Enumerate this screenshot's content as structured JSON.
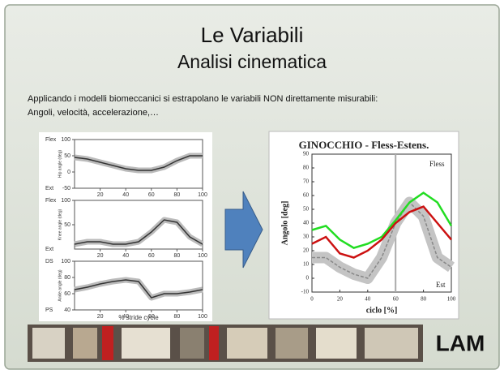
{
  "slide": {
    "title": "Le Variabili",
    "subtitle": "Analisi cinematica",
    "body": [
      "Applicando i modelli biomeccanici si estrapolano le variabili NON direttamente misurabili:",
      "Angoli, velocità, accelerazione,…"
    ],
    "logo": "LAM"
  },
  "left_figure": {
    "xlabel": "% stride cycle",
    "xlim": [
      0,
      100
    ],
    "xticks": [
      20,
      40,
      60,
      80,
      100
    ],
    "x": [
      0,
      10,
      20,
      30,
      40,
      50,
      60,
      70,
      80,
      90,
      100
    ],
    "panels": [
      {
        "ylabel": "Hip angle (deg)",
        "top_label": "Flex",
        "bottom_label": "Ext",
        "ylim": [
          -50,
          100
        ],
        "yticks": [
          -50,
          0,
          50,
          100
        ],
        "values": [
          45,
          40,
          30,
          20,
          10,
          5,
          5,
          15,
          35,
          50,
          50
        ]
      },
      {
        "ylabel": "Knee angle (deg)",
        "top_label": "Flex",
        "bottom_label": "Ext",
        "ylim": [
          0,
          100
        ],
        "yticks": [
          50,
          100
        ],
        "values": [
          10,
          15,
          15,
          10,
          10,
          15,
          35,
          60,
          55,
          25,
          10
        ]
      },
      {
        "ylabel": "Ankle angle (deg)",
        "top_label": "DS",
        "bottom_label": "PS",
        "ylim": [
          40,
          100
        ],
        "yticks": [
          40,
          60,
          80,
          100
        ],
        "values": [
          65,
          68,
          72,
          75,
          77,
          75,
          55,
          60,
          60,
          62,
          65
        ]
      }
    ]
  },
  "right_figure": {
    "type": "line",
    "title": "GINOCCHIO - Fless-Estens.",
    "xlabel": "ciclo [%]",
    "ylabel": "Angolo [deg]",
    "top_note": "Fless",
    "bottom_note": "Est",
    "xlim": [
      0,
      100
    ],
    "xticks": [
      0,
      20,
      40,
      60,
      80,
      100
    ],
    "ylim": [
      -10,
      90
    ],
    "yticks": [
      -10,
      0,
      10,
      20,
      30,
      40,
      50,
      60,
      70,
      80,
      90
    ],
    "marker_x": 60,
    "x": [
      0,
      10,
      20,
      30,
      40,
      50,
      60,
      70,
      80,
      90,
      100
    ],
    "series": [
      {
        "color": "#888888",
        "values": [
          15,
          15,
          8,
          3,
          0,
          15,
          40,
          55,
          45,
          15,
          8
        ]
      },
      {
        "color": "#22dd22",
        "values": [
          35,
          38,
          28,
          22,
          25,
          30,
          42,
          55,
          62,
          55,
          38
        ]
      },
      {
        "color": "#cc1111",
        "values": [
          25,
          30,
          18,
          15,
          20,
          28,
          40,
          48,
          52,
          40,
          28
        ]
      }
    ]
  }
}
